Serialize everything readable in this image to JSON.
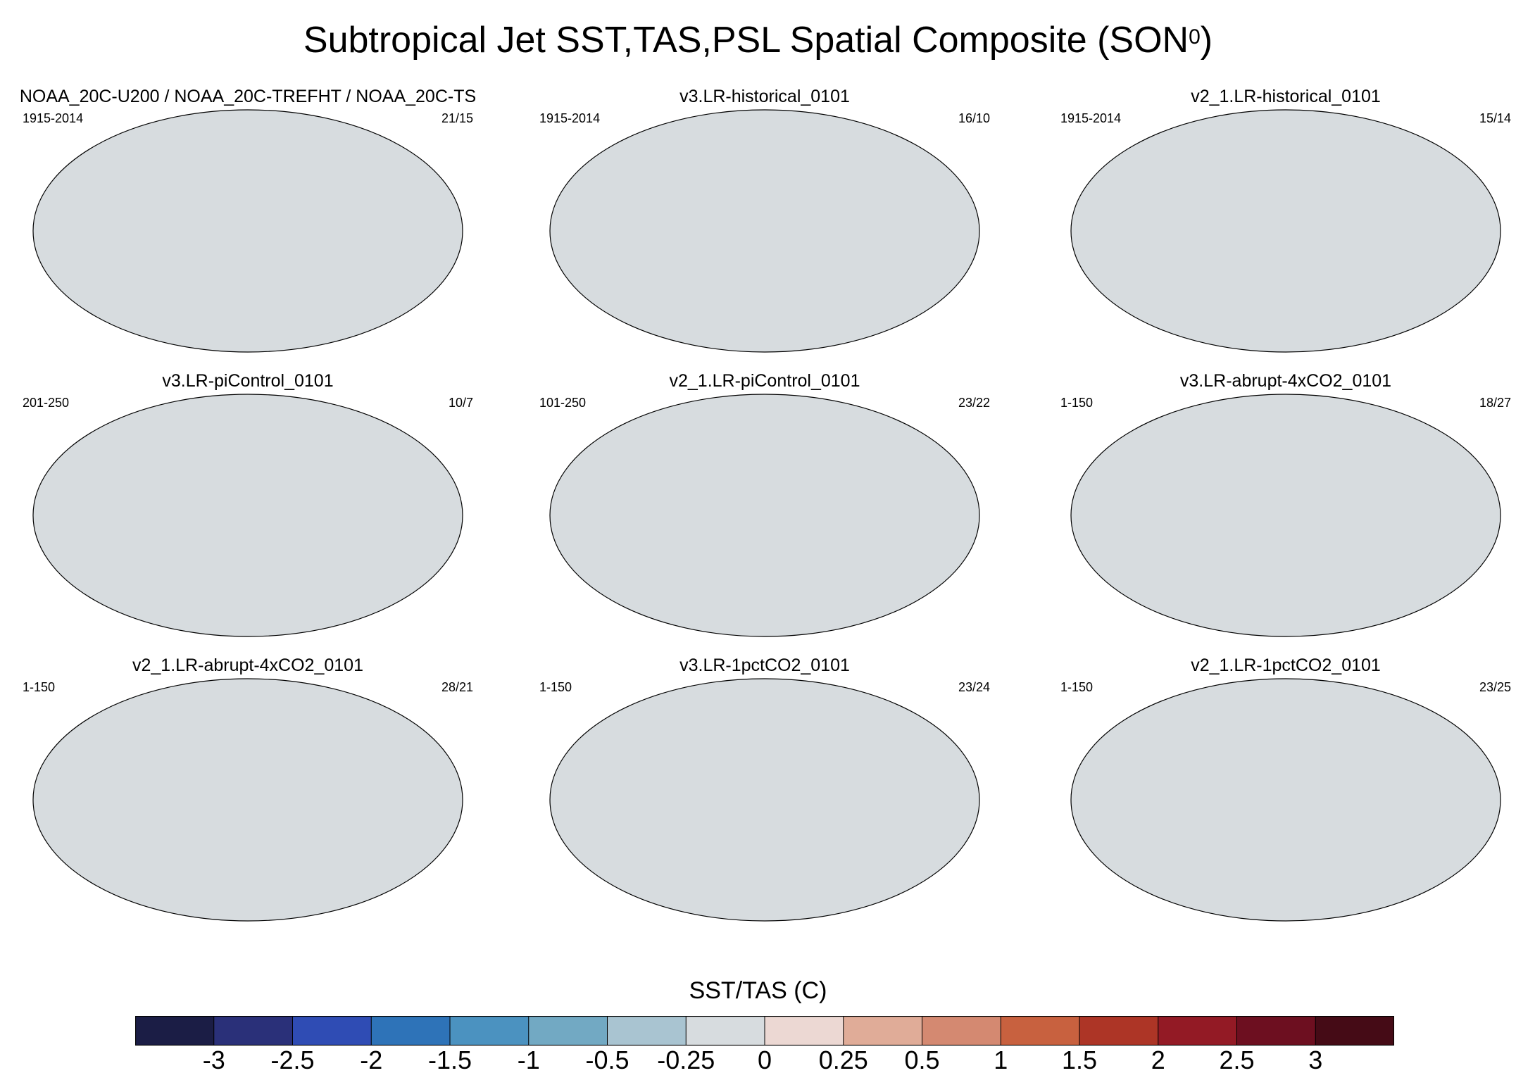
{
  "figure": {
    "title": "Subtropical Jet SST,TAS,PSL Spatial Composite (SON",
    "title_sup": "0",
    "title_close": ")"
  },
  "panels": [
    {
      "title": "NOAA_20C-U200 / NOAA_20C-TREFHT / NOAA_20C-TS",
      "period": "1915-2014",
      "ratio": "21/15"
    },
    {
      "title": "v3.LR-historical_0101",
      "period": "1915-2014",
      "ratio": "16/10"
    },
    {
      "title": "v2_1.LR-historical_0101",
      "period": "1915-2014",
      "ratio": "15/14"
    },
    {
      "title": "v3.LR-piControl_0101",
      "period": "201-250",
      "ratio": "10/7"
    },
    {
      "title": "v2_1.LR-piControl_0101",
      "period": "101-250",
      "ratio": "23/22"
    },
    {
      "title": "v3.LR-abrupt-4xCO2_0101",
      "period": "1-150",
      "ratio": "18/27"
    },
    {
      "title": "v2_1.LR-abrupt-4xCO2_0101",
      "period": "1-150",
      "ratio": "28/21"
    },
    {
      "title": "v3.LR-1pctCO2_0101",
      "period": "1-150",
      "ratio": "23/24"
    },
    {
      "title": "v2_1.LR-1pctCO2_0101",
      "period": "1-150",
      "ratio": "23/25"
    }
  ],
  "colorbar": {
    "label": "SST/TAS (C)",
    "tick_labels": [
      "-3",
      "-2.5",
      "-2",
      "-1.5",
      "-1",
      "-0.5",
      "-0.25",
      "0",
      "0.25",
      "0.5",
      "1",
      "1.5",
      "2",
      "2.5",
      "3"
    ],
    "colors": [
      "#1b1d45",
      "#2a3079",
      "#2f4cb4",
      "#2e73b8",
      "#4b92c0",
      "#72a9c3",
      "#a9c4d1",
      "#d7dcdf",
      "#ecd8d3",
      "#e0ac98",
      "#d48971",
      "#c8613f",
      "#ad3526",
      "#931a25",
      "#6d0f20",
      "#450b16"
    ]
  }
}
